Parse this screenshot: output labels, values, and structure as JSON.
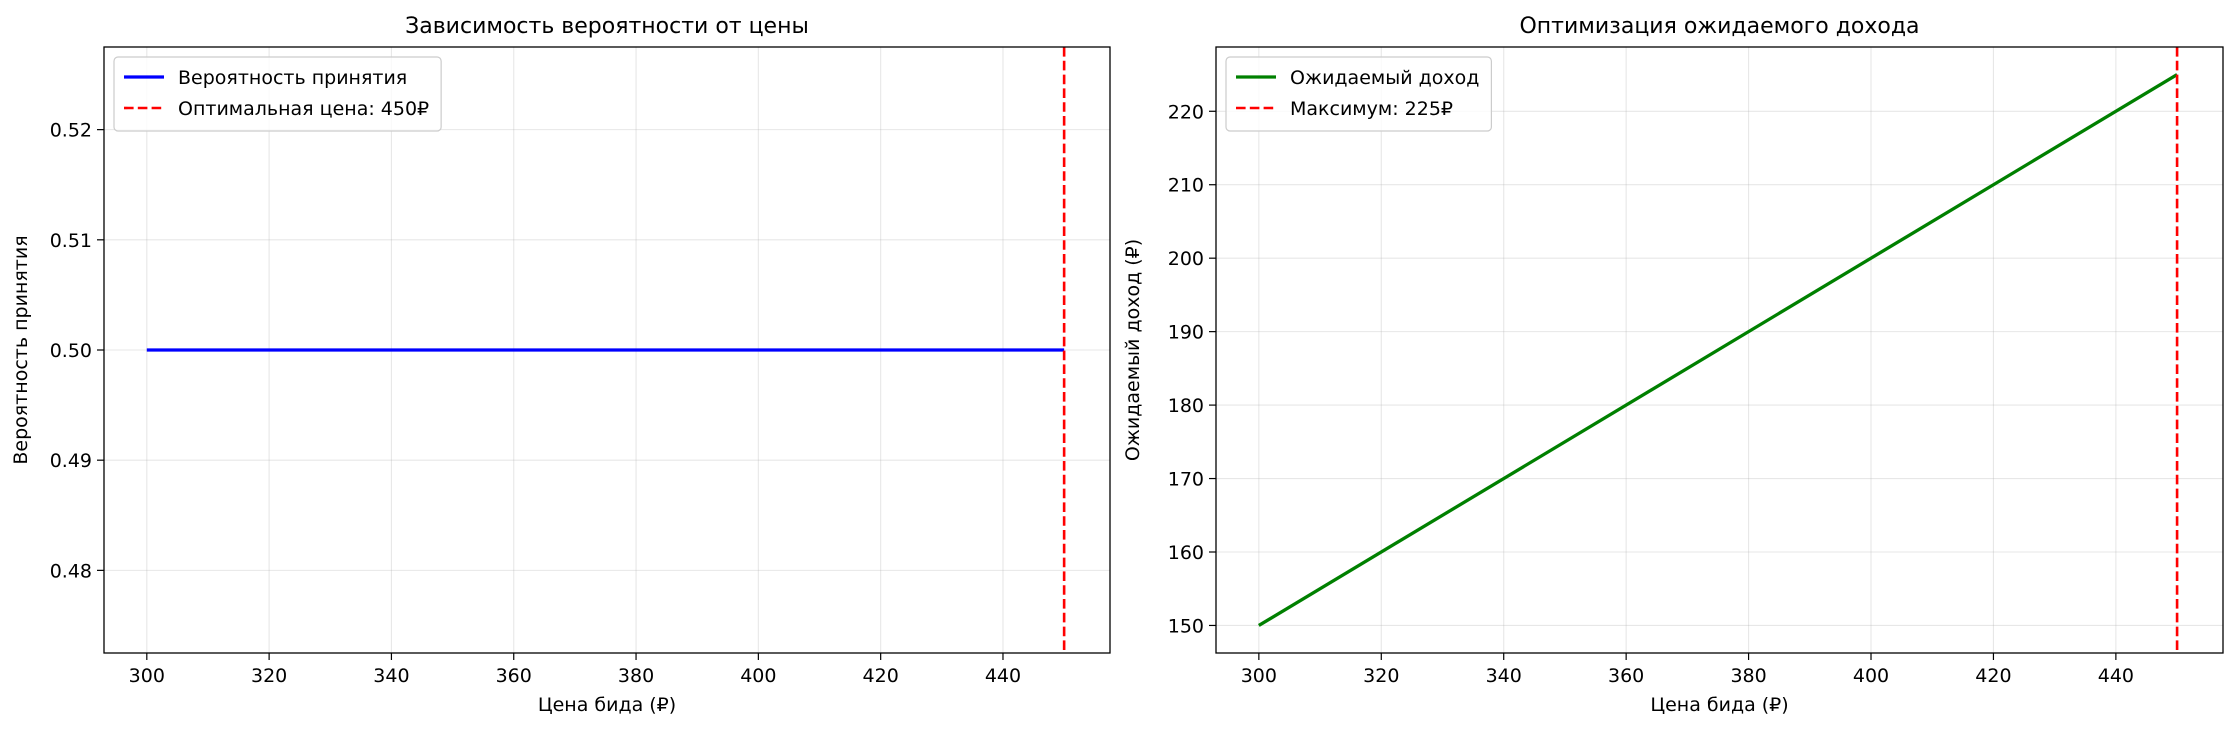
{
  "chart_data": [
    {
      "type": "line",
      "title": "Зависимость вероятности от цены",
      "xlabel": "Цена бида (₽)",
      "ylabel": "Вероятность принятия",
      "xlim": [
        293,
        457.5
      ],
      "ylim": [
        0.4725,
        0.5275
      ],
      "xticks": [
        300,
        320,
        340,
        360,
        380,
        400,
        420,
        440
      ],
      "yticks": [
        0.48,
        0.49,
        0.5,
        0.51,
        0.52
      ],
      "ytick_labels": [
        "0.48",
        "0.49",
        "0.50",
        "0.51",
        "0.52"
      ],
      "grid": true,
      "legend": "top-left",
      "series": [
        {
          "name": "Вероятность принятия",
          "color": "#0000ff",
          "style": "solid",
          "x": [
            300,
            450
          ],
          "y": [
            0.5,
            0.5
          ]
        }
      ],
      "vlines": [
        {
          "name": "Оптимальная цена: 450₽",
          "color": "#ff0000",
          "style": "dashed",
          "x": 450
        }
      ]
    },
    {
      "type": "line",
      "title": "Оптимизация ожидаемого дохода",
      "xlabel": "Цена бида (₽)",
      "ylabel": "Ожидаемый доход (₽)",
      "xlim": [
        293,
        457.5
      ],
      "ylim": [
        146.25,
        228.75
      ],
      "xticks": [
        300,
        320,
        340,
        360,
        380,
        400,
        420,
        440
      ],
      "yticks": [
        150,
        160,
        170,
        180,
        190,
        200,
        210,
        220
      ],
      "ytick_labels": [
        "150",
        "160",
        "170",
        "180",
        "190",
        "200",
        "210",
        "220"
      ],
      "grid": true,
      "legend": "top-left",
      "series": [
        {
          "name": "Ожидаемый доход",
          "color": "#008000",
          "style": "solid",
          "x": [
            300,
            450
          ],
          "y": [
            150,
            225
          ]
        }
      ],
      "vlines": [
        {
          "name": "Максимум: 225₽",
          "color": "#ff0000",
          "style": "dashed",
          "x": 450
        }
      ]
    }
  ]
}
